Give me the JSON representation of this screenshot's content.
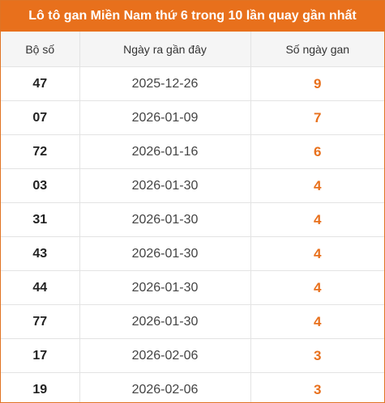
{
  "title": "Lô tô gan Miền Nam thứ 6 trong 10 lần quay gần nhất",
  "accent_color": "#e8701c",
  "headers": {
    "bo_so": "Bộ số",
    "ngay_ra": "Ngày ra gần đây",
    "so_ngay_gan": "Số ngày gan"
  },
  "rows": [
    {
      "num": "47",
      "date": "2025-12-26",
      "gan": "9"
    },
    {
      "num": "07",
      "date": "2026-01-09",
      "gan": "7"
    },
    {
      "num": "72",
      "date": "2026-01-16",
      "gan": "6"
    },
    {
      "num": "03",
      "date": "2026-01-30",
      "gan": "4"
    },
    {
      "num": "31",
      "date": "2026-01-30",
      "gan": "4"
    },
    {
      "num": "43",
      "date": "2026-01-30",
      "gan": "4"
    },
    {
      "num": "44",
      "date": "2026-01-30",
      "gan": "4"
    },
    {
      "num": "77",
      "date": "2026-01-30",
      "gan": "4"
    },
    {
      "num": "17",
      "date": "2026-02-06",
      "gan": "3"
    },
    {
      "num": "19",
      "date": "2026-02-06",
      "gan": "3"
    }
  ]
}
